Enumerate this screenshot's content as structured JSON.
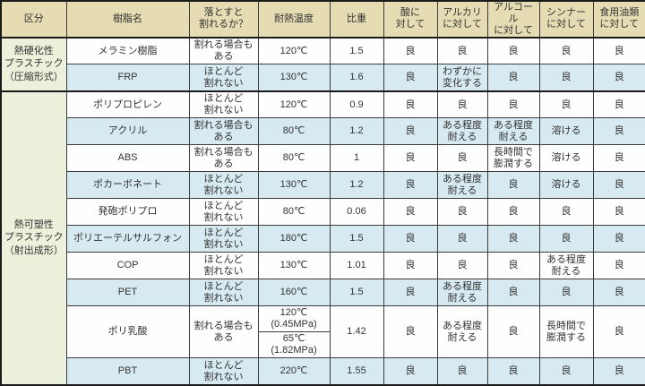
{
  "colors": {
    "header_bg": "#e5dcb3",
    "group_bg": "#ebf1da",
    "alt_row_bg": "#d8eaf1",
    "row_bg": "#fefefe",
    "border": "#3c3c3c",
    "text": "#333333"
  },
  "table": {
    "headers": {
      "category": "区分",
      "resin": "樹脂名",
      "breakability": "落とすと\n割れるか？",
      "heat": "耐熱温度",
      "gravity": "比重",
      "acid": "酸に\n対して",
      "alkali": "アルカリ\nに対して",
      "alcohol": "アルコール\nに対して",
      "thinner": "シンナー\nに対して",
      "oil": "食用油類\nに対して"
    },
    "groups": [
      {
        "label": "熱硬化性\nプラスチック\n（圧縮形式）"
      },
      {
        "label": "熱可塑性\nプラスチック\n（射出成形）"
      }
    ],
    "rows": [
      {
        "resin": "メラミン樹脂",
        "breakability": "割れる場合も\nある",
        "heat": "120℃",
        "gravity": "1.5",
        "acid": "良",
        "alkali": "良",
        "alcohol": "良",
        "thinner": "良",
        "oil": "良"
      },
      {
        "resin": "FRP",
        "breakability": "ほとんど\n割れない",
        "heat": "130℃",
        "gravity": "1.6",
        "acid": "良",
        "alkali": "わずかに\n変化する",
        "alcohol": "良",
        "thinner": "良",
        "oil": "良"
      },
      {
        "resin": "ポリプロピレン",
        "breakability": "ほとんど\n割れない",
        "heat": "120℃",
        "gravity": "0.9",
        "acid": "良",
        "alkali": "良",
        "alcohol": "良",
        "thinner": "良",
        "oil": "良"
      },
      {
        "resin": "アクリル",
        "breakability": "割れる場合も\nある",
        "heat": "80℃",
        "gravity": "1.2",
        "acid": "良",
        "alkali": "ある程度\n耐える",
        "alcohol": "ある程度\n耐える",
        "thinner": "溶ける",
        "oil": "良"
      },
      {
        "resin": "ABS",
        "breakability": "割れる場合も\nある",
        "heat": "80℃",
        "gravity": "1",
        "acid": "良",
        "alkali": "良",
        "alcohol": "長時間で\n膨潤する",
        "thinner": "溶ける",
        "oil": "良"
      },
      {
        "resin": "ポカーボネート",
        "breakability": "ほとんど\n割れない",
        "heat": "130℃",
        "gravity": "1.2",
        "acid": "良",
        "alkali": "ある程度\n耐える",
        "alcohol": "良",
        "thinner": "溶ける",
        "oil": "良"
      },
      {
        "resin": "発砲ポリプロ",
        "breakability": "ほとんど\n割れない",
        "heat": "80℃",
        "gravity": "0.06",
        "acid": "良",
        "alkali": "良",
        "alcohol": "良",
        "thinner": "良",
        "oil": "良"
      },
      {
        "resin": "ポリエーテルサルフォン",
        "breakability": "ほとんど\n割れない",
        "heat": "180℃",
        "gravity": "1.5",
        "acid": "良",
        "alkali": "良",
        "alcohol": "良",
        "thinner": "良",
        "oil": "良"
      },
      {
        "resin": "COP",
        "breakability": "ほとんど\n割れない",
        "heat": "130℃",
        "gravity": "1.01",
        "acid": "良",
        "alkali": "良",
        "alcohol": "良",
        "thinner": "ある程度\n耐える",
        "oil": "良"
      },
      {
        "resin": "PET",
        "breakability": "ほとんど\n割れない",
        "heat": "160℃",
        "gravity": "1.5",
        "acid": "良",
        "alkali": "ある程度\n耐える",
        "alcohol": "良",
        "thinner": "良",
        "oil": "良"
      },
      {
        "resin": "ポリ乳酸",
        "breakability": "割れる場合も\nある",
        "heat": "120℃\n(0.45MPa)",
        "heat2": "65℃\n(1.82MPa)",
        "gravity": "1.42",
        "acid": "良",
        "alkali": "ある程度\n耐える",
        "alcohol": "良",
        "thinner": "長時間で\n膨潤する",
        "oil": "良"
      },
      {
        "resin": "PBT",
        "breakability": "ほとんど\n割れない",
        "heat": "220℃",
        "gravity": "1.55",
        "acid": "良",
        "alkali": "良",
        "alcohol": "良",
        "thinner": "良",
        "oil": "良"
      }
    ]
  }
}
